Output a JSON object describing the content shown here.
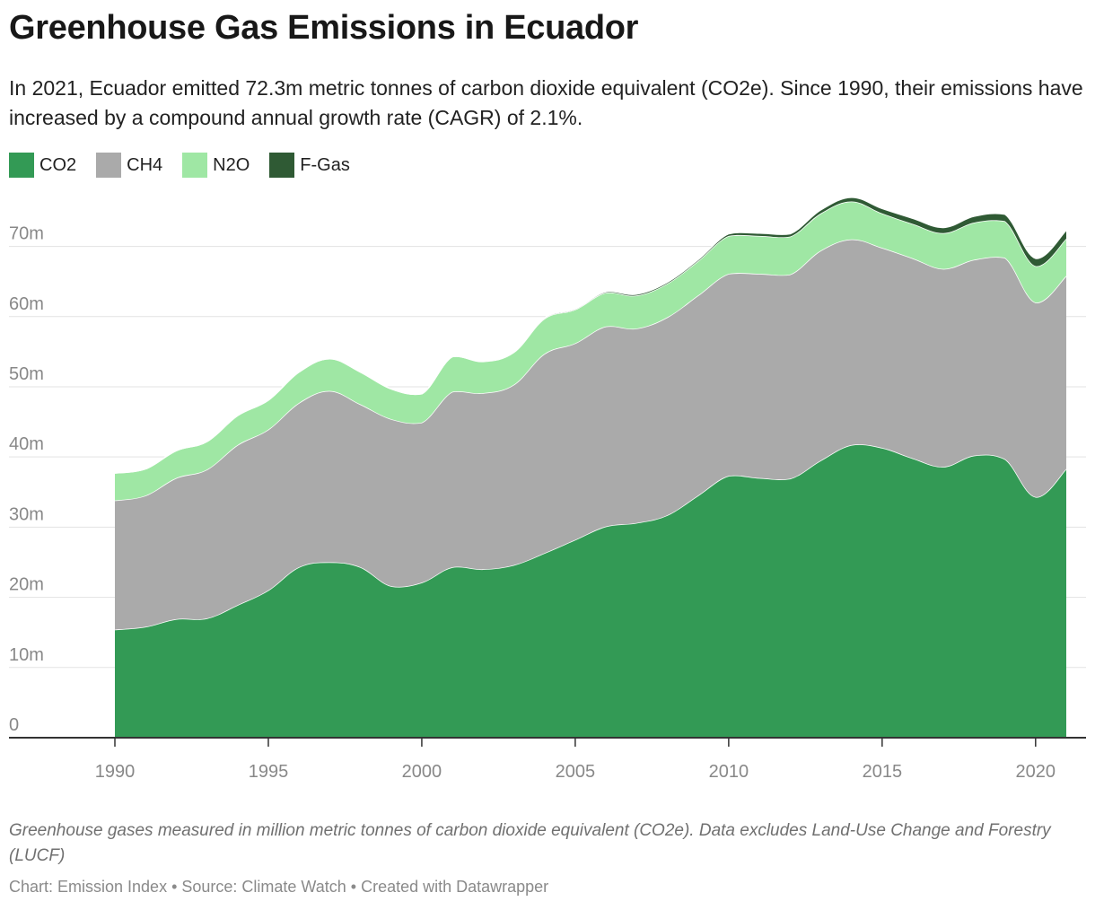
{
  "header": {
    "title": "Greenhouse Gas Emissions in Ecuador",
    "subtitle": "In 2021, Ecuador emitted 72.3m metric tonnes of carbon dioxide equivalent (CO2e). Since 1990, their emissions have increased by a compound annual growth rate (CAGR) of 2.1%."
  },
  "legend": [
    {
      "label": "CO2",
      "color": "#339a55"
    },
    {
      "label": "CH4",
      "color": "#aaaaaa"
    },
    {
      "label": "N2O",
      "color": "#9fe7a4"
    },
    {
      "label": "F-Gas",
      "color": "#2f5a34"
    }
  ],
  "notes": "Greenhouse gases measured in million metric tonnes of carbon dioxide equivalent (CO2e). Data excludes Land-Use Change and Forestry (LUCF)",
  "footer": "Chart: Emission Index • Source: Climate Watch • Created with Datawrapper",
  "chart_data": {
    "type": "area",
    "stacked": true,
    "x": [
      1990,
      1991,
      1992,
      1993,
      1994,
      1995,
      1996,
      1997,
      1998,
      1999,
      2000,
      2001,
      2002,
      2003,
      2004,
      2005,
      2006,
      2007,
      2008,
      2009,
      2010,
      2011,
      2012,
      2013,
      2014,
      2015,
      2016,
      2017,
      2018,
      2019,
      2020,
      2021
    ],
    "series": [
      {
        "name": "CO2",
        "color": "#339a55",
        "values": [
          15.4,
          15.8,
          16.9,
          17.0,
          18.9,
          21.0,
          24.3,
          25.0,
          24.3,
          21.6,
          22.1,
          24.3,
          24.0,
          24.6,
          26.3,
          28.2,
          30.1,
          30.6,
          31.7,
          34.5,
          37.3,
          37.0,
          36.9,
          39.5,
          41.7,
          41.3,
          39.8,
          38.6,
          40.2,
          39.7,
          34.3,
          38.3
        ]
      },
      {
        "name": "CH4",
        "color": "#aaaaaa",
        "values": [
          18.4,
          18.7,
          20.1,
          21.2,
          22.8,
          22.9,
          23.4,
          24.4,
          23.2,
          23.8,
          22.8,
          25.0,
          25.1,
          25.7,
          28.4,
          28.0,
          28.5,
          27.7,
          28.2,
          28.5,
          28.8,
          29.1,
          29.1,
          29.9,
          29.3,
          28.5,
          28.5,
          28.2,
          27.9,
          28.7,
          27.7,
          27.5
        ]
      },
      {
        "name": "N2O",
        "color": "#9fe7a4",
        "values": [
          3.9,
          3.8,
          3.9,
          4.0,
          4.2,
          4.2,
          4.4,
          4.6,
          4.6,
          4.3,
          4.1,
          5.0,
          4.5,
          4.6,
          5.0,
          4.8,
          4.8,
          4.7,
          4.8,
          4.9,
          5.4,
          5.4,
          5.4,
          5.3,
          5.4,
          4.9,
          4.9,
          5.1,
          5.3,
          5.2,
          5.2,
          5.3
        ]
      },
      {
        "name": "F-Gas",
        "color": "#2f5a34",
        "values": [
          0,
          0,
          0,
          0,
          0,
          0,
          0,
          0,
          0,
          0,
          0,
          0,
          0.05,
          0.05,
          0.1,
          0.1,
          0.15,
          0.2,
          0.2,
          0.2,
          0.3,
          0.4,
          0.4,
          0.5,
          0.6,
          0.7,
          0.8,
          0.8,
          0.9,
          1.0,
          1.1,
          1.2
        ]
      }
    ],
    "ylim": [
      0,
      78
    ],
    "yticks": [
      0,
      10,
      20,
      30,
      40,
      50,
      60,
      70
    ],
    "ytick_labels": [
      "0",
      "10m",
      "20m",
      "30m",
      "40m",
      "50m",
      "60m",
      "70m"
    ],
    "xticks": [
      1990,
      1995,
      2000,
      2005,
      2010,
      2015,
      2020
    ],
    "xtick_labels": [
      "1990",
      "1995",
      "2000",
      "2005",
      "2010",
      "2015",
      "2020"
    ],
    "grid": true
  }
}
